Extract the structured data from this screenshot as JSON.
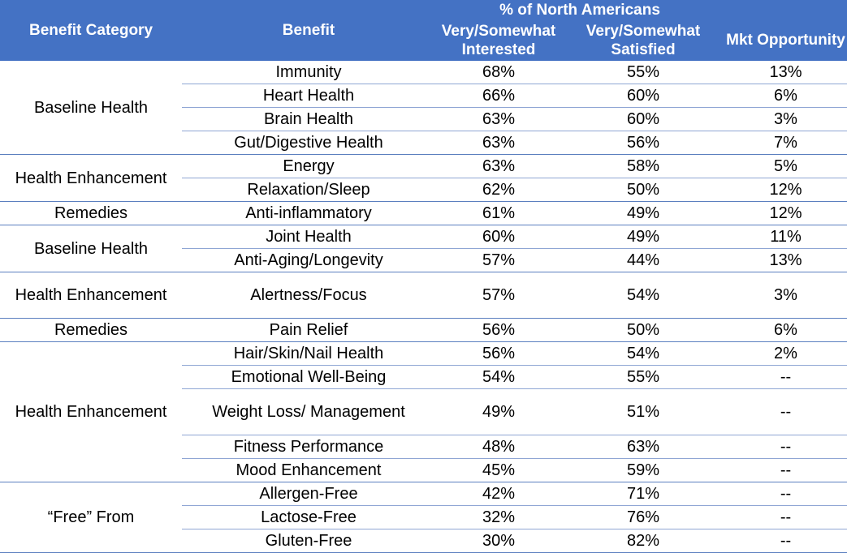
{
  "header": {
    "group": "% of North Americans",
    "col_category": "Benefit Category",
    "col_benefit": "Benefit",
    "col_interested": "Very/Somewhat Interested",
    "col_satisfied": "Very/Somewhat Satisfied",
    "col_opportunity": "Mkt Opportunity"
  },
  "groups": [
    {
      "category": "Baseline Health",
      "rows": [
        {
          "benefit": "Immunity",
          "interested": "68%",
          "satisfied": "55%",
          "opportunity": "13%"
        },
        {
          "benefit": "Heart Health",
          "interested": "66%",
          "satisfied": "60%",
          "opportunity": "6%"
        },
        {
          "benefit": "Brain Health",
          "interested": "63%",
          "satisfied": "60%",
          "opportunity": "3%"
        },
        {
          "benefit": "Gut/Digestive Health",
          "interested": "63%",
          "satisfied": "56%",
          "opportunity": "7%"
        }
      ]
    },
    {
      "category": "Health Enhancement",
      "rows": [
        {
          "benefit": "Energy",
          "interested": "63%",
          "satisfied": "58%",
          "opportunity": "5%"
        },
        {
          "benefit": "Relaxation/Sleep",
          "interested": "62%",
          "satisfied": "50%",
          "opportunity": "12%"
        }
      ]
    },
    {
      "category": "Remedies",
      "rows": [
        {
          "benefit": "Anti-inflammatory",
          "interested": "61%",
          "satisfied": "49%",
          "opportunity": "12%"
        }
      ]
    },
    {
      "category": "Baseline Health",
      "rows": [
        {
          "benefit": "Joint Health",
          "interested": "60%",
          "satisfied": "49%",
          "opportunity": "11%"
        },
        {
          "benefit": "Anti-Aging/Longevity",
          "interested": "57%",
          "satisfied": "44%",
          "opportunity": "13%"
        }
      ]
    },
    {
      "category": "Health Enhancement",
      "rows": [
        {
          "benefit": "Alertness/Focus",
          "interested": "57%",
          "satisfied": "54%",
          "opportunity": "3%"
        }
      ]
    },
    {
      "category": "Remedies",
      "rows": [
        {
          "benefit": "Pain Relief",
          "interested": "56%",
          "satisfied": "50%",
          "opportunity": "6%"
        }
      ]
    },
    {
      "category": "Health Enhancement",
      "rows": [
        {
          "benefit": "Hair/Skin/Nail Health",
          "interested": "56%",
          "satisfied": "54%",
          "opportunity": "2%"
        },
        {
          "benefit": "Emotional Well-Being",
          "interested": "54%",
          "satisfied": "55%",
          "opportunity": "--"
        },
        {
          "benefit": "Weight Loss/ Management",
          "interested": "49%",
          "satisfied": "51%",
          "opportunity": "--"
        },
        {
          "benefit": "Fitness Performance",
          "interested": "48%",
          "satisfied": "63%",
          "opportunity": "--"
        },
        {
          "benefit": "Mood Enhancement",
          "interested": "45%",
          "satisfied": "59%",
          "opportunity": "--"
        }
      ]
    },
    {
      "category": "“Free” From",
      "rows": [
        {
          "benefit": "Allergen-Free",
          "interested": "42%",
          "satisfied": "71%",
          "opportunity": "--"
        },
        {
          "benefit": "Lactose-Free",
          "interested": "32%",
          "satisfied": "76%",
          "opportunity": "--"
        },
        {
          "benefit": "Gluten-Free",
          "interested": "30%",
          "satisfied": "82%",
          "opportunity": "--"
        }
      ]
    }
  ]
}
